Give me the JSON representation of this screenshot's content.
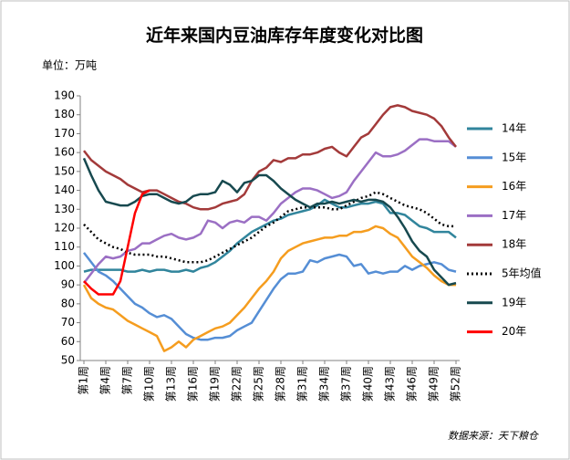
{
  "chart_data": {
    "type": "line",
    "title": "近年来国内豆油库存年度变化对比图",
    "subtitle": "单位：万吨",
    "source": "数据来源：天下粮仓",
    "categories": [
      "第1周",
      null,
      null,
      "第4周",
      null,
      null,
      "第7周",
      null,
      null,
      "第10周",
      null,
      null,
      "第13周",
      null,
      null,
      "第16周",
      null,
      null,
      "第19周",
      null,
      null,
      "第22周",
      null,
      null,
      "第25周",
      null,
      null,
      "第28周",
      null,
      null,
      "第31周",
      null,
      null,
      "第34周",
      null,
      null,
      "第37周",
      null,
      null,
      "第40周",
      null,
      null,
      "第43周",
      null,
      null,
      "第46周",
      null,
      null,
      "第49周",
      null,
      null,
      "第52周"
    ],
    "ylim": [
      50,
      190
    ],
    "yticks": [
      50,
      60,
      70,
      80,
      90,
      100,
      110,
      120,
      130,
      140,
      150,
      160,
      170,
      180,
      190
    ],
    "legend": "right",
    "grid": false,
    "series": [
      {
        "name": "14年",
        "color": "#31859c",
        "values": [
          97,
          98,
          98,
          98,
          98,
          98,
          97,
          97,
          98,
          97,
          98,
          98,
          97,
          97,
          98,
          97,
          99,
          100,
          102,
          105,
          108,
          112,
          115,
          118,
          120,
          122,
          124,
          125,
          127,
          128,
          129,
          130,
          132,
          135,
          133,
          131,
          131,
          132,
          133,
          133,
          134,
          133,
          128,
          128,
          127,
          124,
          121,
          120,
          118,
          118,
          118,
          115
        ]
      },
      {
        "name": "15年",
        "color": "#558ed5",
        "values": [
          107,
          102,
          97,
          95,
          92,
          88,
          84,
          80,
          78,
          75,
          73,
          74,
          72,
          68,
          64,
          62,
          61,
          61,
          62,
          62,
          63,
          66,
          68,
          70,
          76,
          82,
          88,
          93,
          96,
          96,
          97,
          103,
          102,
          104,
          105,
          106,
          105,
          100,
          101,
          96,
          97,
          96,
          97,
          97,
          100,
          98,
          100,
          101,
          102,
          101,
          98,
          97
        ]
      },
      {
        "name": "16年",
        "color": "#f59d1f",
        "values": [
          90,
          83,
          80,
          78,
          77,
          74,
          71,
          69,
          67,
          65,
          63,
          55,
          57,
          60,
          57,
          61,
          63,
          65,
          67,
          68,
          70,
          74,
          78,
          83,
          88,
          92,
          97,
          104,
          108,
          110,
          112,
          113,
          114,
          115,
          115,
          116,
          116,
          118,
          118,
          119,
          121,
          120,
          117,
          115,
          110,
          105,
          102,
          99,
          95,
          92,
          90,
          90
        ]
      },
      {
        "name": "17年",
        "color": "#9b6fc4",
        "values": [
          91,
          96,
          101,
          105,
          104,
          105,
          108,
          109,
          112,
          112,
          114,
          116,
          117,
          115,
          114,
          115,
          117,
          124,
          123,
          120,
          123,
          124,
          123,
          126,
          126,
          124,
          128,
          133,
          136,
          139,
          141,
          141,
          140,
          138,
          136,
          137,
          139,
          145,
          150,
          155,
          160,
          158,
          158,
          159,
          161,
          164,
          167,
          167,
          166,
          166,
          166,
          163
        ]
      },
      {
        "name": "18年",
        "color": "#a33a3a",
        "values": [
          161,
          156,
          153,
          150,
          148,
          146,
          143,
          141,
          139,
          140,
          140,
          138,
          136,
          134,
          133,
          131,
          130,
          130,
          131,
          133,
          134,
          135,
          138,
          145,
          150,
          152,
          156,
          155,
          157,
          157,
          159,
          159,
          160,
          162,
          163,
          160,
          158,
          163,
          168,
          170,
          175,
          180,
          184,
          185,
          184,
          182,
          181,
          180,
          178,
          174,
          168,
          163
        ]
      },
      {
        "name": "5年均值",
        "color": "#000000",
        "style": "dotted",
        "values": [
          122,
          118,
          114,
          112,
          110,
          109,
          107,
          106,
          106,
          106,
          105,
          105,
          104,
          103,
          102,
          102,
          102,
          103,
          105,
          107,
          109,
          111,
          113,
          115,
          118,
          121,
          123,
          126,
          129,
          130,
          131,
          131,
          131,
          131,
          130,
          130,
          132,
          134,
          136,
          137,
          139,
          138,
          136,
          134,
          132,
          131,
          130,
          128,
          125,
          122,
          121,
          121
        ]
      },
      {
        "name": "19年",
        "color": "#17494f",
        "values": [
          157,
          148,
          140,
          134,
          133,
          132,
          132,
          134,
          137,
          138,
          138,
          136,
          134,
          133,
          134,
          137,
          138,
          138,
          139,
          145,
          143,
          139,
          144,
          145,
          148,
          148,
          145,
          141,
          138,
          135,
          133,
          131,
          133,
          133,
          134,
          133,
          134,
          135,
          134,
          135,
          135,
          134,
          131,
          126,
          120,
          113,
          108,
          105,
          98,
          94,
          90,
          91
        ]
      },
      {
        "name": "20年",
        "color": "#ff0000",
        "values": [
          92,
          88,
          85,
          85,
          85,
          92,
          110,
          128,
          138,
          140,
          null,
          null,
          null,
          null,
          null,
          null,
          null,
          null,
          null,
          null,
          null,
          null,
          null,
          null,
          null,
          null,
          null,
          null,
          null,
          null,
          null,
          null,
          null,
          null,
          null,
          null,
          null,
          null,
          null,
          null,
          null,
          null,
          null,
          null,
          null,
          null,
          null,
          null,
          null,
          null,
          null,
          null
        ]
      }
    ]
  }
}
